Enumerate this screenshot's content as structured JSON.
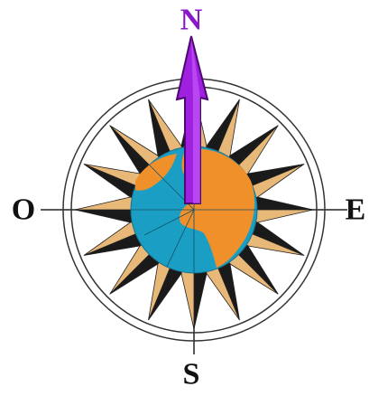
{
  "labels": {
    "north": "N",
    "west": "O",
    "east": "E",
    "south": "S"
  }
}
